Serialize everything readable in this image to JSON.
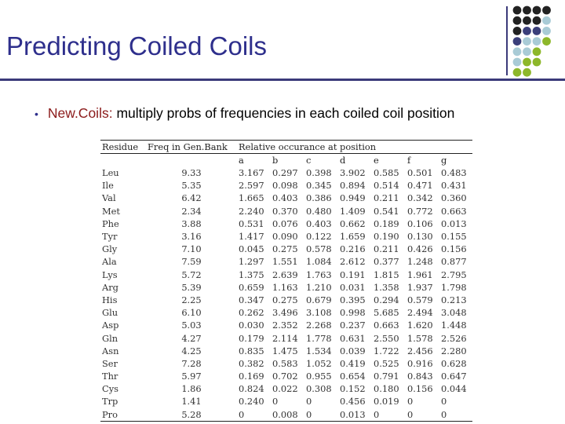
{
  "slide": {
    "title": "Predicting Coiled Coils",
    "bullet_keyword": "New.Coils:",
    "bullet_rest": " multiply probs of frequencies in each coiled coil position"
  },
  "colors": {
    "title": "#2e2f8c",
    "keyword": "#8b1a1a",
    "dot_dark": "#222222",
    "dot_navy": "#3b3f7a",
    "dot_lightblue": "#a9cbd6",
    "dot_green": "#8db72a"
  },
  "table": {
    "header_residue": "Residue",
    "header_freq": "Freq in Gen.Bank",
    "header_relative": "Relative occurance at position",
    "positions": [
      "a",
      "b",
      "c",
      "d",
      "e",
      "f",
      "g"
    ],
    "rows": [
      {
        "residue": "Leu",
        "freq": "9.33",
        "values": [
          "3.167",
          "0.297",
          "0.398",
          "3.902",
          "0.585",
          "0.501",
          "0.483"
        ]
      },
      {
        "residue": "Ile",
        "freq": "5.35",
        "values": [
          "2.597",
          "0.098",
          "0.345",
          "0.894",
          "0.514",
          "0.471",
          "0.431"
        ]
      },
      {
        "residue": "Val",
        "freq": "6.42",
        "values": [
          "1.665",
          "0.403",
          "0.386",
          "0.949",
          "0.211",
          "0.342",
          "0.360"
        ]
      },
      {
        "residue": "Met",
        "freq": "2.34",
        "values": [
          "2.240",
          "0.370",
          "0.480",
          "1.409",
          "0.541",
          "0.772",
          "0.663"
        ]
      },
      {
        "residue": "Phe",
        "freq": "3.88",
        "values": [
          "0.531",
          "0.076",
          "0.403",
          "0.662",
          "0.189",
          "0.106",
          "0.013"
        ]
      },
      {
        "residue": "Tyr",
        "freq": "3.16",
        "values": [
          "1.417",
          "0.090",
          "0.122",
          "1.659",
          "0.190",
          "0.130",
          "0.155"
        ]
      },
      {
        "residue": "Gly",
        "freq": "7.10",
        "values": [
          "0.045",
          "0.275",
          "0.578",
          "0.216",
          "0.211",
          "0.426",
          "0.156"
        ]
      },
      {
        "residue": "Ala",
        "freq": "7.59",
        "values": [
          "1.297",
          "1.551",
          "1.084",
          "2.612",
          "0.377",
          "1.248",
          "0.877"
        ]
      },
      {
        "residue": "Lys",
        "freq": "5.72",
        "values": [
          "1.375",
          "2.639",
          "1.763",
          "0.191",
          "1.815",
          "1.961",
          "2.795"
        ]
      },
      {
        "residue": "Arg",
        "freq": "5.39",
        "values": [
          "0.659",
          "1.163",
          "1.210",
          "0.031",
          "1.358",
          "1.937",
          "1.798"
        ]
      },
      {
        "residue": "His",
        "freq": "2.25",
        "values": [
          "0.347",
          "0.275",
          "0.679",
          "0.395",
          "0.294",
          "0.579",
          "0.213"
        ]
      },
      {
        "residue": "Glu",
        "freq": "6.10",
        "values": [
          "0.262",
          "3.496",
          "3.108",
          "0.998",
          "5.685",
          "2.494",
          "3.048"
        ]
      },
      {
        "residue": "Asp",
        "freq": "5.03",
        "values": [
          "0.030",
          "2.352",
          "2.268",
          "0.237",
          "0.663",
          "1.620",
          "1.448"
        ]
      },
      {
        "residue": "Gln",
        "freq": "4.27",
        "values": [
          "0.179",
          "2.114",
          "1.778",
          "0.631",
          "2.550",
          "1.578",
          "2.526"
        ]
      },
      {
        "residue": "Asn",
        "freq": "4.25",
        "values": [
          "0.835",
          "1.475",
          "1.534",
          "0.039",
          "1.722",
          "2.456",
          "2.280"
        ]
      },
      {
        "residue": "Ser",
        "freq": "7.28",
        "values": [
          "0.382",
          "0.583",
          "1.052",
          "0.419",
          "0.525",
          "0.916",
          "0.628"
        ]
      },
      {
        "residue": "Thr",
        "freq": "5.97",
        "values": [
          "0.169",
          "0.702",
          "0.955",
          "0.654",
          "0.791",
          "0.843",
          "0.647"
        ]
      },
      {
        "residue": "Cys",
        "freq": "1.86",
        "values": [
          "0.824",
          "0.022",
          "0.308",
          "0.152",
          "0.180",
          "0.156",
          "0.044"
        ]
      },
      {
        "residue": "Trp",
        "freq": "1.41",
        "values": [
          "0.240",
          "0",
          "0",
          "0.456",
          "0.019",
          "0",
          "0"
        ]
      },
      {
        "residue": "Pro",
        "freq": "5.28",
        "values": [
          "0",
          "0.008",
          "0",
          "0.013",
          "0",
          "0",
          "0"
        ]
      }
    ]
  }
}
